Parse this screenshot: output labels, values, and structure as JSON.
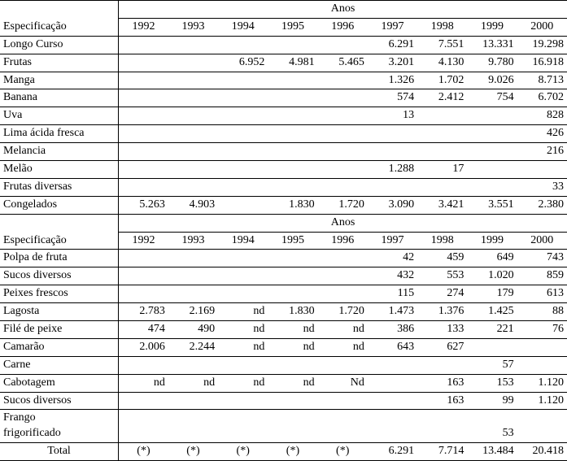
{
  "labels": {
    "especificacao": "Especificação",
    "anos": "Anos",
    "total": "Total",
    "asterisk": "(*)"
  },
  "years": [
    "1992",
    "1993",
    "1994",
    "1995",
    "1996",
    "1997",
    "1998",
    "1999",
    "2000"
  ],
  "section1_rows": [
    {
      "name": "Longo Curso",
      "cells": [
        "",
        "",
        "",
        "",
        "",
        "6.291",
        "7.551",
        "13.331",
        "19.298"
      ]
    },
    {
      "name": "Frutas",
      "cells": [
        "",
        "",
        "6.952",
        "4.981",
        "5.465",
        "3.201",
        "4.130",
        "9.780",
        "16.918"
      ]
    },
    {
      "name": "Manga",
      "cells": [
        "",
        "",
        "",
        "",
        "",
        "1.326",
        "1.702",
        "9.026",
        "8.713"
      ]
    },
    {
      "name": "Banana",
      "cells": [
        "",
        "",
        "",
        "",
        "",
        "574",
        "2.412",
        "754",
        "6.702"
      ]
    },
    {
      "name": "Uva",
      "cells": [
        "",
        "",
        "",
        "",
        "",
        "13",
        "",
        "",
        "828"
      ]
    },
    {
      "name": "Lima ácida fresca",
      "cells": [
        "",
        "",
        "",
        "",
        "",
        "",
        "",
        "",
        "426"
      ]
    },
    {
      "name": "Melancia",
      "cells": [
        "",
        "",
        "",
        "",
        "",
        "",
        "",
        "",
        "216"
      ]
    },
    {
      "name": "Melão",
      "cells": [
        "",
        "",
        "",
        "",
        "",
        "1.288",
        "17",
        "",
        ""
      ]
    },
    {
      "name": "Frutas diversas",
      "cells": [
        "",
        "",
        "",
        "",
        "",
        "",
        "",
        "",
        "33"
      ]
    },
    {
      "name": "Congelados",
      "cells": [
        "5.263",
        "4.903",
        "",
        "1.830",
        "1.720",
        "3.090",
        "3.421",
        "3.551",
        "2.380"
      ]
    }
  ],
  "section2_rows": [
    {
      "name": "Polpa de fruta",
      "cells": [
        "",
        "",
        "",
        "",
        "",
        "42",
        "459",
        "649",
        "743"
      ]
    },
    {
      "name": "Sucos diversos",
      "cells": [
        "",
        "",
        "",
        "",
        "",
        "432",
        "553",
        "1.020",
        "859"
      ]
    },
    {
      "name": "Peixes frescos",
      "cells": [
        "",
        "",
        "",
        "",
        "",
        "115",
        "274",
        "179",
        "613"
      ]
    },
    {
      "name": "Lagosta",
      "cells": [
        "2.783",
        "2.169",
        "nd",
        "1.830",
        "1.720",
        "1.473",
        "1.376",
        "1.425",
        "88"
      ]
    },
    {
      "name": "Filé de peixe",
      "cells": [
        "474",
        "490",
        "nd",
        "nd",
        "nd",
        "386",
        "133",
        "221",
        "76"
      ]
    },
    {
      "name": "Camarão",
      "cells": [
        "2.006",
        "2.244",
        "nd",
        "nd",
        "nd",
        "643",
        "627",
        "",
        ""
      ]
    },
    {
      "name": "Carne",
      "cells": [
        "",
        "",
        "",
        "",
        "",
        "",
        "",
        "57",
        ""
      ]
    },
    {
      "name": "Cabotagem",
      "cells": [
        "nd",
        "nd",
        "nd",
        "nd",
        "Nd",
        "",
        "163",
        "153",
        "1.120"
      ]
    },
    {
      "name": "Sucos diversos",
      "cells": [
        "",
        "",
        "",
        "",
        "",
        "",
        "163",
        "99",
        "1.120"
      ]
    },
    {
      "name": "Frango frigorificado",
      "cells": [
        "",
        "",
        "",
        "",
        "",
        "",
        "",
        "53",
        ""
      ],
      "twoLine": true,
      "line1": "Frango",
      "line2": "frigorificado"
    }
  ],
  "total_cells": [
    "(*)",
    "(*)",
    "(*)",
    "(*)",
    "(*)",
    "6.291",
    "7.714",
    "13.484",
    "20.418"
  ]
}
